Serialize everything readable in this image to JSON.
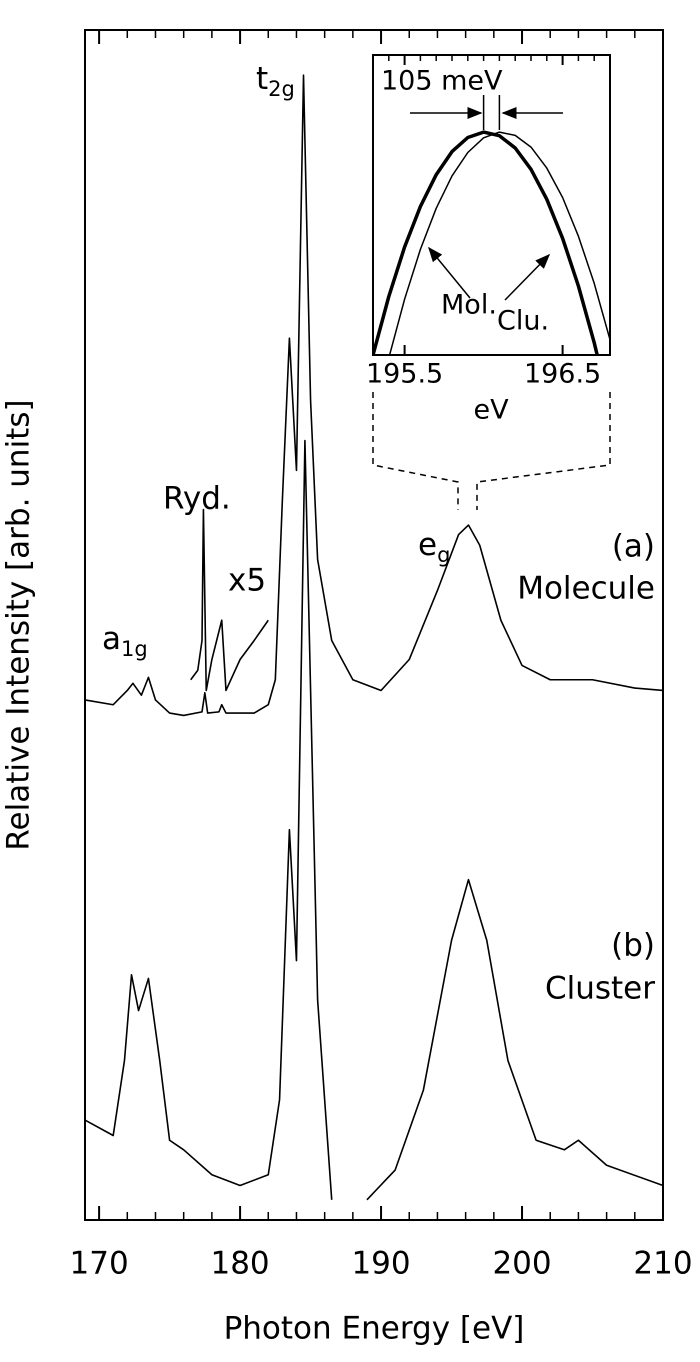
{
  "chart_data": [
    {
      "type": "line",
      "xlabel": "Photon Energy [eV]",
      "ylabel": "Relative Intensity [arb. units]",
      "xlim": [
        169,
        210
      ],
      "ylim": [
        0,
        100
      ],
      "xticks": [
        170,
        180,
        190,
        200,
        210
      ],
      "xminorticks": [
        172,
        174,
        176,
        178,
        182,
        184,
        186,
        188,
        192,
        194,
        196,
        198,
        202,
        204,
        206,
        208
      ],
      "color": "#000000",
      "series": [
        {
          "name": "Molecule",
          "tag": "(a)",
          "x": [
            169,
            171,
            172,
            172.4,
            173,
            173.5,
            174,
            175,
            176,
            177.3,
            177.5,
            177.7,
            178.5,
            178.7,
            179,
            181,
            182,
            182.5,
            183,
            183.5,
            184,
            184.5,
            185,
            185.5,
            186.5,
            188,
            190,
            192,
            194,
            195.5,
            196.2,
            197,
            198.5,
            200,
            202,
            205,
            208,
            210
          ],
          "values": [
            43.7,
            43.3,
            44.5,
            45.1,
            44.1,
            45.6,
            43.7,
            42.6,
            42.4,
            42.7,
            44.3,
            42.6,
            42.7,
            43.3,
            42.6,
            42.6,
            43.3,
            45.4,
            60.5,
            74.1,
            63.0,
            96.2,
            68.9,
            55.5,
            48.7,
            45.4,
            44.5,
            47.1,
            52.9,
            57.6,
            58.4,
            56.7,
            50.4,
            46.6,
            45.4,
            45.4,
            44.7,
            44.5
          ]
        },
        {
          "name": "x5",
          "x": [
            176.5,
            177,
            177.3,
            177.4,
            177.6,
            178,
            178.7,
            179,
            180,
            181,
            182
          ],
          "values": [
            45.4,
            46.2,
            48.7,
            59.7,
            44.5,
            47.1,
            50.4,
            44.5,
            47.1,
            48.7,
            50.4
          ]
        },
        {
          "name": "Cluster",
          "tag": "(b)",
          "x": [
            169,
            171,
            171.8,
            172.3,
            172.8,
            173.5,
            174.3,
            175,
            176,
            178,
            180,
            182,
            182.8,
            183.5,
            184,
            184.6,
            185.5,
            186.5,
            187.5,
            189,
            191,
            193,
            195,
            196.2,
            197.5,
            199,
            201,
            203,
            204,
            206,
            210
          ],
          "values": [
            8.4,
            7.1,
            13.4,
            20.6,
            17.6,
            20.3,
            13.4,
            6.7,
            5.9,
            3.8,
            2.9,
            3.8,
            10.1,
            32.8,
            21.8,
            65.5,
            18.5,
            1.7,
            null,
            1.7,
            4.2,
            10.9,
            23.5,
            28.6,
            23.5,
            13.4,
            6.7,
            5.9,
            6.7,
            4.6,
            2.9
          ]
        }
      ],
      "annotations": [
        {
          "text": "t",
          "sub": "2g"
        },
        {
          "text": "a",
          "sub": "1g"
        },
        {
          "text": "Ryd."
        },
        {
          "text": "e",
          "sub": "g"
        }
      ]
    },
    {
      "type": "line",
      "xlabel": "eV",
      "xlim": [
        195.3,
        196.8
      ],
      "ylim": [
        0,
        1
      ],
      "xticks": [
        195.5,
        196.5
      ],
      "xminorticks": [
        195.4,
        195.6,
        195.7,
        195.8,
        195.9,
        196.0,
        196.1,
        196.2,
        196.3,
        196.4,
        196.6,
        196.7
      ],
      "color": "#000000",
      "series": [
        {
          "name": "Mol.",
          "linewidth": 3.5,
          "x": [
            195.3,
            195.4,
            195.5,
            195.6,
            195.7,
            195.8,
            195.9,
            196.0,
            196.1,
            196.2,
            196.3,
            196.4,
            196.5,
            196.6,
            196.7,
            196.8
          ],
          "values": [
            0.0,
            0.195,
            0.36,
            0.495,
            0.601,
            0.678,
            0.725,
            0.743,
            0.731,
            0.69,
            0.619,
            0.519,
            0.389,
            0.23,
            0.041,
            -0.177
          ]
        },
        {
          "name": "Clu.",
          "linewidth": 1.5,
          "x": [
            195.4,
            195.5,
            195.6,
            195.7,
            195.8,
            195.9,
            196.0,
            196.1,
            196.2,
            196.3,
            196.4,
            196.5,
            196.6,
            196.7,
            196.8
          ],
          "values": [
            -0.01,
            0.186,
            0.352,
            0.489,
            0.597,
            0.675,
            0.724,
            0.743,
            0.732,
            0.693,
            0.623,
            0.525,
            0.396,
            0.239,
            0.051
          ]
        }
      ],
      "annotations": [
        {
          "text": "105 meV"
        }
      ]
    }
  ]
}
